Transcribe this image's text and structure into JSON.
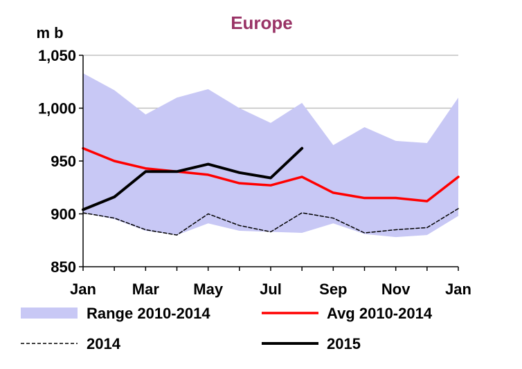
{
  "chart_data": {
    "type": "line",
    "title": "Europe",
    "unit_label": "m b",
    "ylim": [
      850,
      1050
    ],
    "yticks": [
      "850",
      "900",
      "950",
      "1,000",
      "1,050"
    ],
    "ytick_values": [
      850,
      900,
      950,
      1000,
      1050
    ],
    "xticks": [
      "Jan",
      "Mar",
      "May",
      "Jul",
      "Sep",
      "Nov",
      "Jan"
    ],
    "xtick_months": [
      0,
      2,
      4,
      6,
      8,
      10,
      12
    ],
    "grid": true,
    "colors": {
      "range": "#c8c8f5",
      "avg": "#ff0000",
      "y2014": "#000000",
      "y2015": "#000000",
      "grid": "#c0c0c0",
      "title": "#993366"
    },
    "series": [
      {
        "key": "range",
        "name": "Range 2010-2014",
        "style": "band",
        "x": [
          0,
          1,
          2,
          3,
          4,
          5,
          6,
          7,
          8,
          9,
          10,
          11,
          12
        ],
        "upper": [
          1033,
          1017,
          994,
          1010,
          1018,
          1000,
          986,
          1005,
          965,
          982,
          969,
          967,
          1010
        ],
        "lower": [
          901,
          895,
          884,
          880,
          891,
          884,
          883,
          882,
          891,
          881,
          878,
          880,
          898
        ]
      },
      {
        "key": "avg",
        "name": "Avg 2010-2014",
        "style": "solid",
        "x": [
          0,
          1,
          2,
          3,
          4,
          5,
          6,
          7,
          8,
          9,
          10,
          11,
          12
        ],
        "values": [
          962,
          950,
          943,
          940,
          937,
          929,
          927,
          935,
          920,
          915,
          915,
          912,
          935
        ]
      },
      {
        "key": "y2014",
        "name": "2014",
        "style": "dashed",
        "x": [
          0,
          1,
          2,
          3,
          4,
          5,
          6,
          7,
          8,
          9,
          10,
          11,
          12
        ],
        "values": [
          901,
          896,
          885,
          880,
          900,
          889,
          883,
          901,
          896,
          882,
          885,
          887,
          905
        ]
      },
      {
        "key": "y2015",
        "name": "2015",
        "style": "solid-thick",
        "x": [
          0,
          1,
          2,
          3,
          4,
          5,
          6,
          7
        ],
        "values": [
          904,
          916,
          940,
          940,
          947,
          939,
          934,
          962
        ]
      }
    ]
  }
}
